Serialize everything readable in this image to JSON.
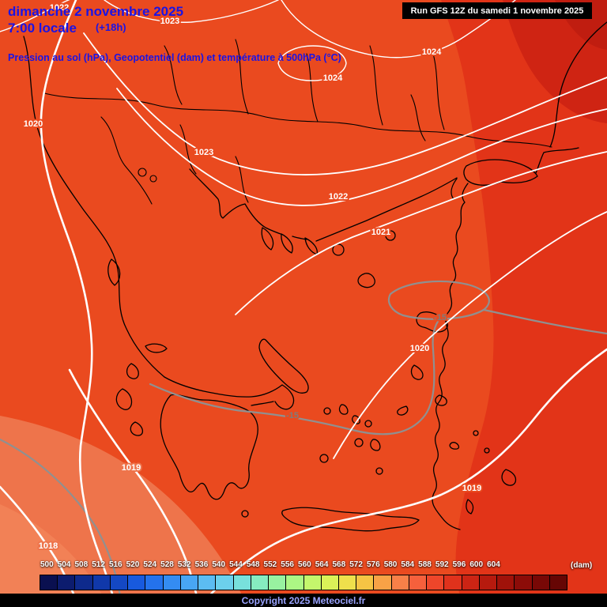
{
  "header": {
    "date": "dimanche 2 novembre 2025",
    "time": "7:00 locale",
    "forecast_offset": "(+18h)",
    "subtitle": "Pression au sol (hPa), Geopotentiel (dam) et température à 500hPa (°C)",
    "run_info": "Run GFS 12Z du samedi 1 novembre 2025"
  },
  "map": {
    "isobar_labels": [
      "1022",
      "1023",
      "1024",
      "1024",
      "1020",
      "1023",
      "1022",
      "1021",
      "1020",
      "1019",
      "1018",
      "1019"
    ],
    "temperature_labels": [
      "-15",
      "-15"
    ],
    "colors": {
      "fill_main": "#ea4a1f",
      "fill_red": "#e23418",
      "fill_dark_red": "#cf2413",
      "fill_darkest_red": "#c01d10",
      "fill_salmon": "#ee744b",
      "fill_light_salmon": "#f28156",
      "isobar_line": "#ffffff",
      "temperature_line": "#909090",
      "coastline": "#000000"
    }
  },
  "colorbar": {
    "ticks": [
      "500",
      "504",
      "508",
      "512",
      "516",
      "520",
      "524",
      "528",
      "532",
      "536",
      "540",
      "544",
      "548",
      "552",
      "556",
      "560",
      "564",
      "568",
      "572",
      "576",
      "580",
      "584",
      "588",
      "592",
      "596",
      "600",
      "604"
    ],
    "unit": "(dam)",
    "colors": [
      "#0a1050",
      "#0c1c6e",
      "#0e2a8c",
      "#1038aa",
      "#1448c4",
      "#185ade",
      "#2472ec",
      "#348cf2",
      "#48a6f4",
      "#5cbcf2",
      "#6cd0ec",
      "#78e0dc",
      "#86ecc0",
      "#98f2a0",
      "#acf684",
      "#c4f66c",
      "#daf258",
      "#eee04c",
      "#f6c444",
      "#f8a246",
      "#f88048",
      "#f6603c",
      "#ee462a",
      "#e0321c",
      "#cc2414",
      "#b61a0e",
      "#a0120a",
      "#8c0c08",
      "#780806",
      "#660604"
    ]
  },
  "footer": {
    "copyright": "Copyright 2025 Meteociel.fr"
  }
}
